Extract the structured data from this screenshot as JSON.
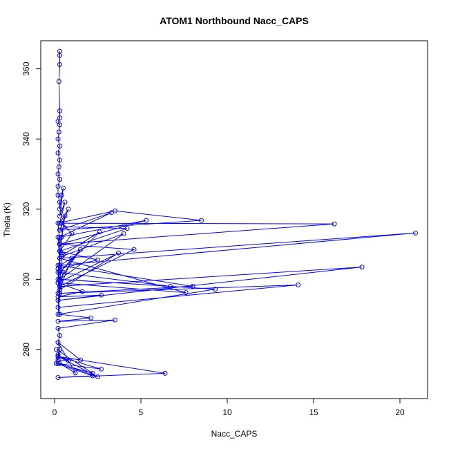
{
  "chart_data": {
    "type": "line",
    "title": "ATOM1 Northbound Nacc_CAPS",
    "xlabel": "Nacc_CAPS",
    "ylabel": "Theta (K)",
    "xlim": [
      -0.8,
      21.6
    ],
    "ylim": [
      266,
      368
    ],
    "xticks": [
      0,
      5,
      10,
      15,
      20
    ],
    "yticks": [
      280,
      300,
      320,
      340,
      360
    ],
    "series_color": "#0000ff",
    "grid": false,
    "legend": "none",
    "series": [
      {
        "marker": "circle-open",
        "x": [
          0.3,
          0.3,
          0.3,
          0.25,
          0.3,
          0.3,
          0.2,
          0.3,
          0.25,
          0.2,
          0.3,
          0.2,
          0.3,
          0.25,
          0.2,
          0.3,
          0.2,
          0.2,
          0.3,
          0.3,
          0.4,
          0.5,
          0.3,
          0.6,
          0.3,
          0.8,
          0.3,
          0.6,
          0.4,
          0.3,
          0.2,
          3.5,
          8.5,
          0.3,
          3.3,
          0.3,
          5.3,
          0.3,
          16.2,
          0.4,
          1.0,
          0.3,
          4.2,
          0.5,
          0.3,
          20.9,
          0.3,
          0.2,
          0.5,
          2.6,
          0.3,
          1.5,
          0.3,
          4.0,
          0.4,
          0.3,
          4.6,
          0.3,
          0.2,
          1.0,
          0.3,
          0.5,
          0.2,
          17.8,
          0.3,
          0.2,
          14.1,
          0.3,
          0.2,
          9.3,
          0.3,
          0.2,
          8.0,
          0.3,
          0.2,
          6.7,
          0.2,
          0.3,
          7.6,
          0.2,
          3.7,
          0.3,
          0.2,
          2.5,
          0.3,
          0.2,
          1.6,
          0.2,
          2.7,
          0.2,
          0.3,
          2.1,
          0.2,
          3.5,
          0.2,
          0.3,
          0.2,
          0.3,
          0.2,
          0.1,
          0.2,
          0.3,
          0.2,
          0.8,
          0.2,
          1.5,
          0.2,
          1.2,
          0.3,
          2.5,
          0.2,
          0.1,
          2.2,
          0.2,
          6.4,
          0.2,
          2.7,
          0.2,
          2.2,
          0.1
        ],
        "y": [
          365,
          363.8,
          361.2,
          356.4,
          348,
          346,
          345,
          344,
          342,
          340,
          338,
          336,
          334,
          332,
          330,
          328.5,
          326.5,
          324,
          322,
          320,
          324,
          326,
          318,
          322,
          316,
          320,
          314,
          318,
          312,
          310,
          316,
          319.5,
          316.8,
          314,
          319,
          312,
          316.8,
          310,
          315.8,
          316,
          313,
          308,
          314.5,
          315,
          306,
          313.2,
          304,
          312,
          307,
          313.5,
          302,
          308.5,
          300,
          313,
          306.5,
          298,
          308.5,
          310,
          296,
          306,
          304,
          302,
          294,
          303.5,
          298,
          292,
          298.4,
          296,
          290,
          297.2,
          300,
          304,
          298,
          296,
          302,
          298,
          300,
          306,
          296.2,
          299,
          307.5,
          297,
          303,
          305.5,
          308,
          299,
          296.5,
          295,
          295.5,
          294,
          290,
          289,
          288,
          288.4,
          286,
          284,
          282,
          280,
          278,
          276,
          278.5,
          280,
          277,
          276.8,
          278,
          277,
          282,
          273.3,
          276,
          272.2,
          278,
          276,
          272.5,
          272,
          273.2,
          278,
          274.4,
          276,
          273.2,
          280
        ]
      }
    ]
  }
}
